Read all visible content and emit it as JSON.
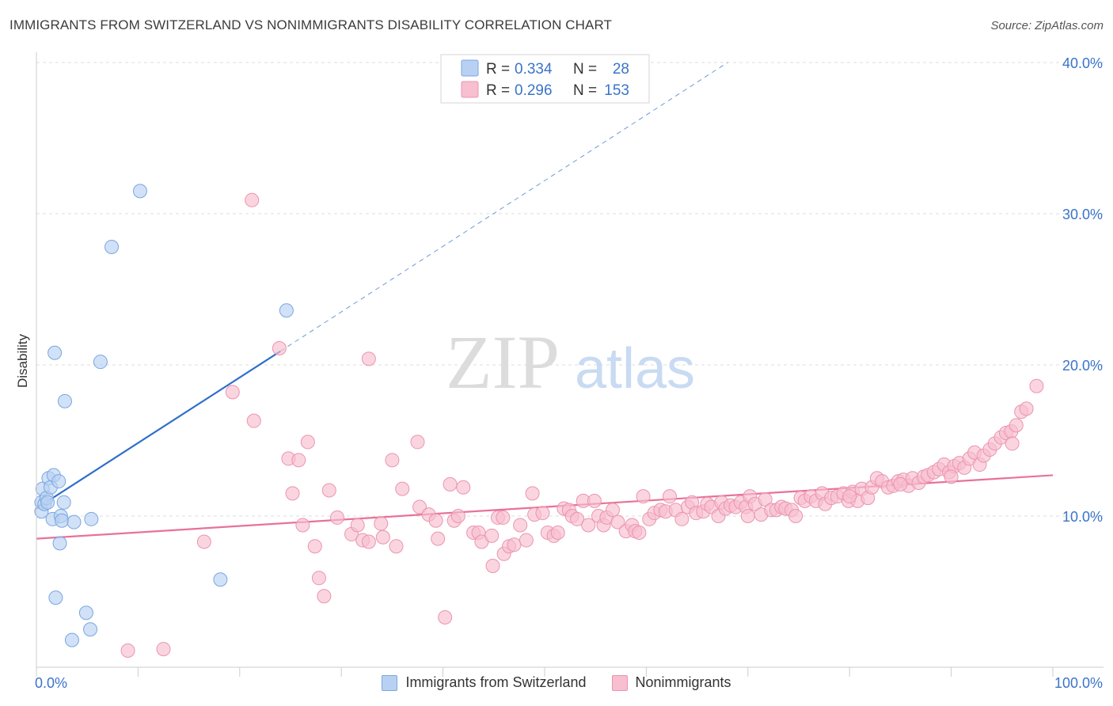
{
  "title": "IMMIGRANTS FROM SWITZERLAND VS NONIMMIGRANTS DISABILITY CORRELATION CHART",
  "source": "Source: ZipAtlas.com",
  "watermark": {
    "zip": "ZIP",
    "atlas": "atlas"
  },
  "legend_box": {
    "rows": [
      {
        "r_label": "R =",
        "r_value": "0.334",
        "n_label": "N =",
        "n_value": "28",
        "series": "swiss"
      },
      {
        "r_label": "R =",
        "r_value": "0.296",
        "n_label": "N =",
        "n_value": "153",
        "series": "nonimm"
      }
    ]
  },
  "legend_bottom": {
    "swiss": "Immigrants from Switzerland",
    "nonimm": "Nonimmigrants"
  },
  "colors": {
    "swiss_fill": "#b8d1f3",
    "swiss_stroke": "#7aa7e0",
    "swiss_line": "#2e6fca",
    "nonimm_fill": "#f7bfd0",
    "nonimm_stroke": "#eb94b0",
    "nonimm_line": "#e8719a",
    "axis_text": "#3a74c9",
    "grid": "#dddddd"
  },
  "chart_data": {
    "type": "scatter",
    "title": "IMMIGRANTS FROM SWITZERLAND VS NONIMMIGRANTS DISABILITY CORRELATION CHART",
    "xlabel": "",
    "ylabel": "Disability",
    "xlim": [
      0,
      100
    ],
    "ylim": [
      0,
      40
    ],
    "x_tick_labels": [
      "0.0%",
      "100.0%"
    ],
    "y_ticks": [
      10,
      20,
      30,
      40
    ],
    "y_tick_labels": [
      "10.0%",
      "20.0%",
      "30.0%",
      "40.0%"
    ],
    "grid": true,
    "legend": "top-center",
    "series": [
      {
        "name": "Immigrants from Switzerland",
        "key": "swiss",
        "r": 0.334,
        "n": 28,
        "trend": {
          "x": [
            0,
            24
          ],
          "y": [
            10.5,
            20.9
          ],
          "dashed_to": [
            68,
            40.0
          ]
        },
        "points": [
          [
            0.5,
            10.9
          ],
          [
            0.5,
            10.3
          ],
          [
            0.6,
            11.8
          ],
          [
            0.8,
            10.8
          ],
          [
            1.0,
            11.2
          ],
          [
            1.1,
            10.9
          ],
          [
            1.2,
            12.5
          ],
          [
            1.4,
            11.9
          ],
          [
            1.6,
            9.8
          ],
          [
            1.7,
            12.7
          ],
          [
            1.8,
            20.8
          ],
          [
            1.9,
            4.6
          ],
          [
            2.2,
            12.3
          ],
          [
            2.3,
            8.2
          ],
          [
            2.4,
            10.0
          ],
          [
            2.5,
            9.7
          ],
          [
            2.7,
            10.9
          ],
          [
            2.8,
            17.6
          ],
          [
            3.5,
            1.8
          ],
          [
            3.7,
            9.6
          ],
          [
            4.9,
            3.6
          ],
          [
            5.3,
            2.5
          ],
          [
            5.4,
            9.8
          ],
          [
            6.3,
            20.2
          ],
          [
            7.4,
            27.8
          ],
          [
            10.2,
            31.5
          ],
          [
            18.1,
            5.8
          ],
          [
            24.6,
            23.6
          ]
        ]
      },
      {
        "name": "Nonimmigrants",
        "key": "nonimm",
        "r": 0.296,
        "n": 153,
        "trend": {
          "x": [
            0,
            100
          ],
          "y": [
            8.5,
            12.7
          ]
        },
        "points": [
          [
            9.0,
            1.1
          ],
          [
            12.5,
            1.2
          ],
          [
            16.5,
            8.3
          ],
          [
            19.3,
            18.2
          ],
          [
            21.2,
            30.9
          ],
          [
            21.4,
            16.3
          ],
          [
            23.9,
            21.1
          ],
          [
            24.8,
            13.8
          ],
          [
            25.2,
            11.5
          ],
          [
            25.8,
            13.7
          ],
          [
            26.2,
            9.4
          ],
          [
            26.7,
            14.9
          ],
          [
            27.4,
            8.0
          ],
          [
            27.8,
            5.9
          ],
          [
            28.3,
            4.7
          ],
          [
            28.8,
            11.7
          ],
          [
            29.6,
            9.9
          ],
          [
            31.0,
            8.8
          ],
          [
            31.6,
            9.4
          ],
          [
            32.1,
            8.4
          ],
          [
            32.7,
            8.3
          ],
          [
            32.7,
            20.4
          ],
          [
            33.9,
            9.5
          ],
          [
            34.1,
            8.6
          ],
          [
            35.0,
            13.7
          ],
          [
            35.4,
            8.0
          ],
          [
            36.0,
            11.8
          ],
          [
            37.5,
            14.9
          ],
          [
            37.7,
            10.6
          ],
          [
            38.6,
            10.1
          ],
          [
            39.3,
            9.7
          ],
          [
            39.5,
            8.5
          ],
          [
            40.2,
            3.3
          ],
          [
            40.7,
            12.1
          ],
          [
            41.1,
            9.7
          ],
          [
            41.5,
            10.0
          ],
          [
            42.0,
            11.9
          ],
          [
            43.0,
            8.9
          ],
          [
            43.5,
            8.9
          ],
          [
            43.8,
            8.3
          ],
          [
            44.8,
            8.7
          ],
          [
            44.9,
            6.7
          ],
          [
            45.4,
            9.9
          ],
          [
            45.9,
            9.9
          ],
          [
            46.0,
            7.5
          ],
          [
            46.5,
            8.0
          ],
          [
            47.0,
            8.1
          ],
          [
            47.6,
            9.4
          ],
          [
            48.2,
            8.4
          ],
          [
            48.8,
            11.5
          ],
          [
            49.0,
            10.1
          ],
          [
            49.8,
            10.2
          ],
          [
            50.3,
            8.9
          ],
          [
            50.9,
            8.7
          ],
          [
            51.3,
            8.9
          ],
          [
            51.9,
            10.5
          ],
          [
            52.4,
            10.4
          ],
          [
            52.7,
            10.0
          ],
          [
            53.2,
            9.8
          ],
          [
            53.8,
            11.0
          ],
          [
            54.3,
            9.4
          ],
          [
            54.9,
            11.0
          ],
          [
            55.3,
            10.0
          ],
          [
            55.8,
            9.4
          ],
          [
            56.1,
            9.9
          ],
          [
            56.7,
            10.4
          ],
          [
            57.2,
            9.6
          ],
          [
            58.0,
            9.0
          ],
          [
            58.6,
            9.4
          ],
          [
            58.9,
            9.0
          ],
          [
            59.3,
            8.9
          ],
          [
            59.7,
            11.3
          ],
          [
            60.3,
            9.8
          ],
          [
            60.8,
            10.2
          ],
          [
            61.4,
            10.4
          ],
          [
            61.9,
            10.3
          ],
          [
            62.3,
            11.3
          ],
          [
            62.9,
            10.4
          ],
          [
            63.5,
            9.8
          ],
          [
            64.1,
            10.6
          ],
          [
            64.5,
            10.9
          ],
          [
            64.9,
            10.2
          ],
          [
            65.6,
            10.3
          ],
          [
            66.0,
            10.8
          ],
          [
            66.4,
            10.6
          ],
          [
            67.1,
            10.0
          ],
          [
            67.4,
            10.9
          ],
          [
            67.8,
            10.5
          ],
          [
            68.3,
            10.7
          ],
          [
            68.8,
            10.6
          ],
          [
            69.3,
            10.9
          ],
          [
            69.8,
            10.6
          ],
          [
            70.2,
            11.3
          ],
          [
            70.7,
            10.8
          ],
          [
            71.3,
            10.1
          ],
          [
            71.7,
            11.1
          ],
          [
            72.3,
            10.4
          ],
          [
            72.8,
            10.4
          ],
          [
            73.3,
            10.6
          ],
          [
            73.7,
            10.5
          ],
          [
            74.3,
            10.4
          ],
          [
            74.7,
            10.0
          ],
          [
            75.2,
            11.2
          ],
          [
            75.6,
            11.0
          ],
          [
            76.2,
            11.3
          ],
          [
            76.7,
            11.0
          ],
          [
            77.3,
            11.5
          ],
          [
            77.6,
            10.8
          ],
          [
            78.2,
            11.2
          ],
          [
            78.8,
            11.3
          ],
          [
            79.4,
            11.5
          ],
          [
            79.9,
            11.0
          ],
          [
            80.3,
            11.6
          ],
          [
            80.8,
            11.0
          ],
          [
            81.2,
            11.8
          ],
          [
            81.8,
            11.2
          ],
          [
            82.2,
            11.9
          ],
          [
            82.7,
            12.5
          ],
          [
            83.2,
            12.3
          ],
          [
            83.8,
            11.9
          ],
          [
            84.3,
            12.0
          ],
          [
            84.8,
            12.3
          ],
          [
            85.3,
            12.4
          ],
          [
            85.8,
            12.0
          ],
          [
            86.2,
            12.5
          ],
          [
            86.8,
            12.2
          ],
          [
            87.3,
            12.6
          ],
          [
            87.7,
            12.7
          ],
          [
            88.3,
            12.9
          ],
          [
            88.8,
            13.1
          ],
          [
            89.3,
            13.4
          ],
          [
            89.8,
            12.9
          ],
          [
            90.3,
            13.3
          ],
          [
            90.8,
            13.5
          ],
          [
            91.3,
            13.2
          ],
          [
            91.8,
            13.8
          ],
          [
            92.3,
            14.2
          ],
          [
            92.8,
            13.4
          ],
          [
            93.2,
            14.0
          ],
          [
            93.8,
            14.4
          ],
          [
            94.3,
            14.8
          ],
          [
            94.9,
            15.2
          ],
          [
            95.4,
            15.5
          ],
          [
            95.9,
            15.6
          ],
          [
            96.4,
            16.0
          ],
          [
            96.9,
            16.9
          ],
          [
            97.4,
            17.1
          ],
          [
            98.4,
            18.6
          ],
          [
            96.0,
            14.8
          ],
          [
            90.0,
            12.6
          ],
          [
            85.0,
            12.1
          ],
          [
            80.0,
            11.3
          ],
          [
            70.0,
            10.0
          ]
        ]
      }
    ]
  }
}
